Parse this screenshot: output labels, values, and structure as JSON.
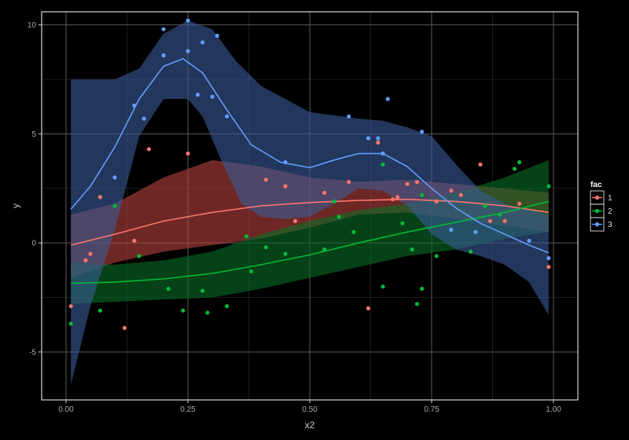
{
  "chart_data": {
    "type": "scatter",
    "title": "",
    "xlabel": "x2",
    "ylabel": "y",
    "xlim": [
      -0.05,
      1.05
    ],
    "ylim": [
      -7.2,
      10.6
    ],
    "x_ticks": [
      0.0,
      0.25,
      0.5,
      0.75,
      1.0
    ],
    "x_tick_labels": [
      "0.00",
      "0.25",
      "0.50",
      "0.75",
      "1.00"
    ],
    "y_ticks": [
      -5,
      0,
      5,
      10
    ],
    "y_tick_labels": [
      "-5",
      "0",
      "5",
      "10"
    ],
    "grid": true,
    "background": "#000000",
    "panel_border_color": "#ffffff",
    "grid_color": "#5a5a5a",
    "legend": {
      "title": "fac",
      "placement": "right",
      "entries": [
        "1",
        "2",
        "3"
      ]
    },
    "series": [
      {
        "name": "1",
        "color": "#f8766d",
        "band_color": "#b5433d",
        "points": [
          {
            "x": 0.01,
            "y": -2.9
          },
          {
            "x": 0.04,
            "y": -0.8
          },
          {
            "x": 0.05,
            "y": -0.5
          },
          {
            "x": 0.07,
            "y": 2.1
          },
          {
            "x": 0.12,
            "y": -3.9
          },
          {
            "x": 0.14,
            "y": 0.1
          },
          {
            "x": 0.17,
            "y": 4.3
          },
          {
            "x": 0.25,
            "y": 4.1
          },
          {
            "x": 0.41,
            "y": 2.9
          },
          {
            "x": 0.45,
            "y": 2.6
          },
          {
            "x": 0.47,
            "y": 1.0
          },
          {
            "x": 0.53,
            "y": 2.3
          },
          {
            "x": 0.58,
            "y": 2.8
          },
          {
            "x": 0.62,
            "y": -3.0
          },
          {
            "x": 0.64,
            "y": 4.6
          },
          {
            "x": 0.67,
            "y": 2.0
          },
          {
            "x": 0.68,
            "y": 2.1
          },
          {
            "x": 0.7,
            "y": 2.7
          },
          {
            "x": 0.72,
            "y": 2.8
          },
          {
            "x": 0.76,
            "y": 1.9
          },
          {
            "x": 0.79,
            "y": 2.4
          },
          {
            "x": 0.81,
            "y": 2.2
          },
          {
            "x": 0.85,
            "y": 3.6
          },
          {
            "x": 0.87,
            "y": 1.0
          },
          {
            "x": 0.9,
            "y": 1.0
          },
          {
            "x": 0.93,
            "y": 1.8
          },
          {
            "x": 0.99,
            "y": -1.1
          }
        ],
        "smooth": [
          {
            "x": 0.01,
            "y": -0.1
          },
          {
            "x": 0.1,
            "y": 0.4
          },
          {
            "x": 0.2,
            "y": 1.0
          },
          {
            "x": 0.3,
            "y": 1.4
          },
          {
            "x": 0.4,
            "y": 1.7
          },
          {
            "x": 0.5,
            "y": 1.85
          },
          {
            "x": 0.6,
            "y": 1.95
          },
          {
            "x": 0.7,
            "y": 2.0
          },
          {
            "x": 0.8,
            "y": 1.9
          },
          {
            "x": 0.9,
            "y": 1.7
          },
          {
            "x": 0.99,
            "y": 1.4
          }
        ],
        "band_upper": [
          {
            "x": 0.01,
            "y": 1.3
          },
          {
            "x": 0.1,
            "y": 1.8
          },
          {
            "x": 0.2,
            "y": 3.0
          },
          {
            "x": 0.3,
            "y": 3.8
          },
          {
            "x": 0.4,
            "y": 3.5
          },
          {
            "x": 0.5,
            "y": 3.0
          },
          {
            "x": 0.6,
            "y": 2.8
          },
          {
            "x": 0.7,
            "y": 2.9
          },
          {
            "x": 0.8,
            "y": 2.7
          },
          {
            "x": 0.9,
            "y": 2.5
          },
          {
            "x": 0.99,
            "y": 2.3
          }
        ],
        "band_lower": [
          {
            "x": 0.01,
            "y": -1.6
          },
          {
            "x": 0.1,
            "y": -0.9
          },
          {
            "x": 0.2,
            "y": -0.4
          },
          {
            "x": 0.3,
            "y": -0.1
          },
          {
            "x": 0.4,
            "y": 0.2
          },
          {
            "x": 0.5,
            "y": 0.7
          },
          {
            "x": 0.6,
            "y": 1.3
          },
          {
            "x": 0.7,
            "y": 1.4
          },
          {
            "x": 0.8,
            "y": 1.1
          },
          {
            "x": 0.9,
            "y": 0.8
          },
          {
            "x": 0.99,
            "y": 0.5
          }
        ]
      },
      {
        "name": "2",
        "color": "#00ba38",
        "band_color": "#0a6e26",
        "points": [
          {
            "x": 0.01,
            "y": -3.7
          },
          {
            "x": 0.07,
            "y": -3.1
          },
          {
            "x": 0.1,
            "y": 1.7
          },
          {
            "x": 0.15,
            "y": -0.6
          },
          {
            "x": 0.21,
            "y": -2.1
          },
          {
            "x": 0.24,
            "y": -3.1
          },
          {
            "x": 0.28,
            "y": -2.2
          },
          {
            "x": 0.29,
            "y": -3.2
          },
          {
            "x": 0.33,
            "y": -2.9
          },
          {
            "x": 0.37,
            "y": 0.3
          },
          {
            "x": 0.38,
            "y": -1.3
          },
          {
            "x": 0.41,
            "y": -0.2
          },
          {
            "x": 0.45,
            "y": -0.5
          },
          {
            "x": 0.53,
            "y": -0.3
          },
          {
            "x": 0.55,
            "y": 1.9
          },
          {
            "x": 0.56,
            "y": 1.2
          },
          {
            "x": 0.59,
            "y": 0.5
          },
          {
            "x": 0.65,
            "y": 3.6
          },
          {
            "x": 0.65,
            "y": -2.0
          },
          {
            "x": 0.69,
            "y": 0.9
          },
          {
            "x": 0.71,
            "y": -0.3
          },
          {
            "x": 0.72,
            "y": -2.8
          },
          {
            "x": 0.73,
            "y": 2.2
          },
          {
            "x": 0.73,
            "y": -2.1
          },
          {
            "x": 0.76,
            "y": -0.6
          },
          {
            "x": 0.83,
            "y": -0.4
          },
          {
            "x": 0.86,
            "y": 1.7
          },
          {
            "x": 0.89,
            "y": 1.3
          },
          {
            "x": 0.92,
            "y": 3.4
          },
          {
            "x": 0.93,
            "y": 3.7
          },
          {
            "x": 0.99,
            "y": 2.6
          }
        ],
        "smooth": [
          {
            "x": 0.01,
            "y": -1.85
          },
          {
            "x": 0.1,
            "y": -1.8
          },
          {
            "x": 0.2,
            "y": -1.65
          },
          {
            "x": 0.3,
            "y": -1.4
          },
          {
            "x": 0.4,
            "y": -1.0
          },
          {
            "x": 0.5,
            "y": -0.55
          },
          {
            "x": 0.6,
            "y": 0.0
          },
          {
            "x": 0.7,
            "y": 0.5
          },
          {
            "x": 0.8,
            "y": 0.95
          },
          {
            "x": 0.9,
            "y": 1.4
          },
          {
            "x": 0.99,
            "y": 1.9
          }
        ],
        "band_upper": [
          {
            "x": 0.01,
            "y": -0.9
          },
          {
            "x": 0.1,
            "y": -1.0
          },
          {
            "x": 0.2,
            "y": -0.8
          },
          {
            "x": 0.3,
            "y": -0.4
          },
          {
            "x": 0.4,
            "y": 0.4
          },
          {
            "x": 0.5,
            "y": 1.0
          },
          {
            "x": 0.6,
            "y": 1.5
          },
          {
            "x": 0.7,
            "y": 1.8
          },
          {
            "x": 0.8,
            "y": 2.3
          },
          {
            "x": 0.9,
            "y": 3.0
          },
          {
            "x": 0.99,
            "y": 3.8
          }
        ],
        "band_lower": [
          {
            "x": 0.01,
            "y": -2.8
          },
          {
            "x": 0.1,
            "y": -2.7
          },
          {
            "x": 0.2,
            "y": -2.6
          },
          {
            "x": 0.3,
            "y": -2.5
          },
          {
            "x": 0.4,
            "y": -2.1
          },
          {
            "x": 0.5,
            "y": -1.6
          },
          {
            "x": 0.6,
            "y": -1.1
          },
          {
            "x": 0.7,
            "y": -0.6
          },
          {
            "x": 0.8,
            "y": -0.3
          },
          {
            "x": 0.9,
            "y": 0.2
          },
          {
            "x": 0.99,
            "y": 0.5
          }
        ]
      },
      {
        "name": "3",
        "color": "#619cff",
        "band_color": "#3a5c99",
        "points": [
          {
            "x": 0.1,
            "y": 3.0
          },
          {
            "x": 0.14,
            "y": 6.3
          },
          {
            "x": 0.16,
            "y": 5.7
          },
          {
            "x": 0.2,
            "y": 8.6
          },
          {
            "x": 0.2,
            "y": 9.8
          },
          {
            "x": 0.25,
            "y": 8.8
          },
          {
            "x": 0.25,
            "y": 10.2
          },
          {
            "x": 0.27,
            "y": 6.8
          },
          {
            "x": 0.28,
            "y": 9.2
          },
          {
            "x": 0.3,
            "y": 6.7
          },
          {
            "x": 0.31,
            "y": 9.5
          },
          {
            "x": 0.33,
            "y": 5.8
          },
          {
            "x": 0.45,
            "y": 3.7
          },
          {
            "x": 0.58,
            "y": 5.8
          },
          {
            "x": 0.62,
            "y": 4.8
          },
          {
            "x": 0.64,
            "y": 4.8
          },
          {
            "x": 0.65,
            "y": 4.1
          },
          {
            "x": 0.66,
            "y": 6.6
          },
          {
            "x": 0.73,
            "y": 5.1
          },
          {
            "x": 0.79,
            "y": 0.6
          },
          {
            "x": 0.84,
            "y": 0.5
          },
          {
            "x": 0.95,
            "y": 0.1
          },
          {
            "x": 0.99,
            "y": -0.7
          }
        ],
        "smooth": [
          {
            "x": 0.01,
            "y": 1.55
          },
          {
            "x": 0.05,
            "y": 2.6
          },
          {
            "x": 0.1,
            "y": 4.4
          },
          {
            "x": 0.15,
            "y": 6.6
          },
          {
            "x": 0.2,
            "y": 8.1
          },
          {
            "x": 0.24,
            "y": 8.45
          },
          {
            "x": 0.28,
            "y": 7.8
          },
          {
            "x": 0.33,
            "y": 6.1
          },
          {
            "x": 0.38,
            "y": 4.5
          },
          {
            "x": 0.44,
            "y": 3.7
          },
          {
            "x": 0.5,
            "y": 3.45
          },
          {
            "x": 0.55,
            "y": 3.8
          },
          {
            "x": 0.6,
            "y": 4.1
          },
          {
            "x": 0.65,
            "y": 4.1
          },
          {
            "x": 0.7,
            "y": 3.5
          },
          {
            "x": 0.75,
            "y": 2.5
          },
          {
            "x": 0.8,
            "y": 1.6
          },
          {
            "x": 0.85,
            "y": 0.9
          },
          {
            "x": 0.9,
            "y": 0.4
          },
          {
            "x": 0.95,
            "y": -0.1
          },
          {
            "x": 0.99,
            "y": -0.45
          }
        ],
        "band_upper": [
          {
            "x": 0.01,
            "y": 7.5
          },
          {
            "x": 0.1,
            "y": 7.5
          },
          {
            "x": 0.15,
            "y": 8.0
          },
          {
            "x": 0.2,
            "y": 9.6
          },
          {
            "x": 0.25,
            "y": 10.2
          },
          {
            "x": 0.3,
            "y": 9.8
          },
          {
            "x": 0.35,
            "y": 8.3
          },
          {
            "x": 0.4,
            "y": 7.2
          },
          {
            "x": 0.5,
            "y": 6.0
          },
          {
            "x": 0.6,
            "y": 5.7
          },
          {
            "x": 0.65,
            "y": 5.6
          },
          {
            "x": 0.7,
            "y": 5.3
          },
          {
            "x": 0.75,
            "y": 4.9
          },
          {
            "x": 0.8,
            "y": 3.6
          },
          {
            "x": 0.85,
            "y": 2.4
          },
          {
            "x": 0.9,
            "y": 1.8
          },
          {
            "x": 0.99,
            "y": 1.3
          }
        ],
        "band_lower": [
          {
            "x": 0.01,
            "y": -6.5
          },
          {
            "x": 0.05,
            "y": -2.9
          },
          {
            "x": 0.1,
            "y": 0.6
          },
          {
            "x": 0.15,
            "y": 4.9
          },
          {
            "x": 0.2,
            "y": 6.6
          },
          {
            "x": 0.25,
            "y": 6.6
          },
          {
            "x": 0.28,
            "y": 5.8
          },
          {
            "x": 0.32,
            "y": 3.7
          },
          {
            "x": 0.36,
            "y": 1.8
          },
          {
            "x": 0.4,
            "y": 1.2
          },
          {
            "x": 0.45,
            "y": 1.1
          },
          {
            "x": 0.5,
            "y": 1.2
          },
          {
            "x": 0.55,
            "y": 1.8
          },
          {
            "x": 0.6,
            "y": 2.5
          },
          {
            "x": 0.65,
            "y": 2.4
          },
          {
            "x": 0.7,
            "y": 1.7
          },
          {
            "x": 0.75,
            "y": 0.4
          },
          {
            "x": 0.8,
            "y": -0.3
          },
          {
            "x": 0.85,
            "y": -0.6
          },
          {
            "x": 0.9,
            "y": -1.0
          },
          {
            "x": 0.95,
            "y": -1.8
          },
          {
            "x": 0.99,
            "y": -3.3
          }
        ]
      }
    ]
  }
}
